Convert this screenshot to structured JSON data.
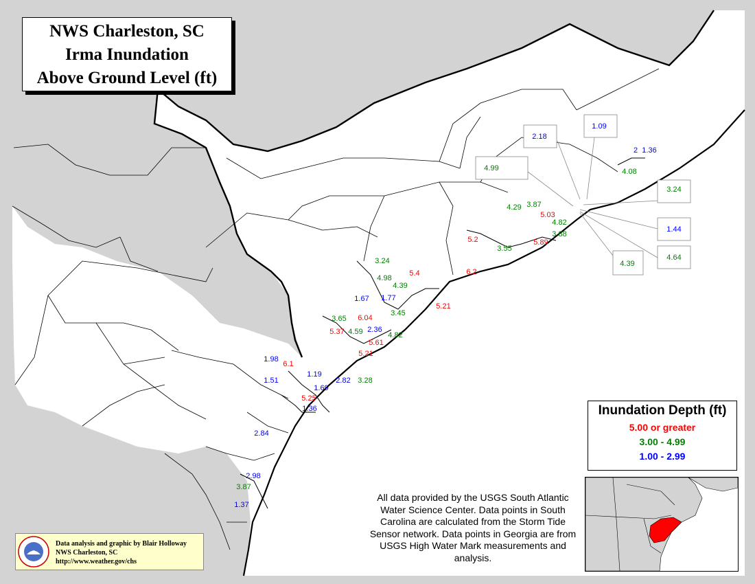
{
  "title": {
    "line1": "NWS Charleston, SC",
    "line2": "Irma Inundation",
    "line3": "Above Ground Level (ft)"
  },
  "legend": {
    "heading": "Inundation Depth (ft)",
    "items": [
      {
        "label": "5.00 or greater",
        "color": "#ff0000"
      },
      {
        "label": "3.00 - 4.99",
        "color": "#008000"
      },
      {
        "label": "1.00 - 2.99",
        "color": "#0000ff"
      }
    ]
  },
  "credit": {
    "line1": "Data analysis and graphic by Blair Holloway",
    "line2": "NWS Charleston, SC",
    "line3": "http://www.weather.gov/chs"
  },
  "note": "All data provided by the USGS South Atlantic Water Science Center. Data points in South Carolina are calculated from the Storm Tide Sensor network. Data points in Georgia are from USGS High Water Mark measurements and analysis.",
  "colors": {
    "high": "#ff0000",
    "mid": "#008000",
    "low": "#0000ff",
    "land_outside": "#d3d3d3",
    "land_inside": "#ffffff",
    "highlight": "#ff0000"
  },
  "readings": [
    "2.18",
    "1.09",
    "2",
    "1.36",
    "4.99",
    "4.08",
    "3.24",
    "3.87",
    "4.29",
    "5.03",
    "4.82",
    "3.88",
    "1.44",
    "5.2",
    "3.55",
    "5.89",
    "4.64",
    "4.39",
    "3.24",
    "6.2",
    "4.98",
    "5.4",
    "4.39",
    "1.67",
    "1.77",
    "3.65",
    "6.04",
    "3.45",
    "5.21",
    "5.37",
    "4.59",
    "2.36",
    "4.82",
    "5.61",
    "5.21",
    "1.98",
    "6.1",
    "1.19",
    "3.28",
    "1.51",
    "2.82",
    "1.69",
    "5.25",
    "1.36",
    "2.84",
    "2.98",
    "3.87",
    "1.37"
  ]
}
